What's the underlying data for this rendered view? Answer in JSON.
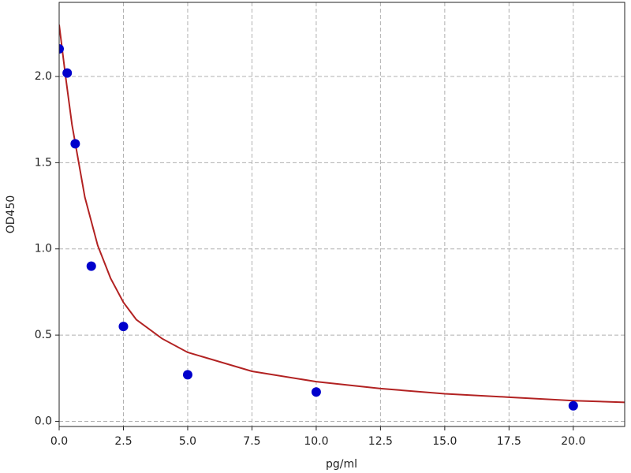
{
  "chart_data": {
    "type": "scatter",
    "x_label": "pg/ml",
    "y_label": "OD450",
    "xlim": [
      0,
      22
    ],
    "ylim": [
      -0.03,
      2.43
    ],
    "xticks": [
      {
        "value": 0,
        "label": "0.0"
      },
      2.5,
      {
        "value": 5,
        "label": "5.0"
      },
      7.5,
      {
        "value": 10,
        "label": "10.0"
      },
      12.5,
      {
        "value": 15,
        "label": "15.0"
      },
      17.5,
      {
        "value": 20,
        "label": "20.0"
      }
    ],
    "yticks": [
      {
        "value": 0,
        "label": "0.0"
      },
      0.5,
      {
        "value": 1,
        "label": "1.0"
      },
      1.5,
      {
        "value": 2,
        "label": "2.0"
      }
    ],
    "grid": true,
    "series": [
      {
        "type": "line",
        "color": "#b22222",
        "x": [
          0,
          0.25,
          0.5,
          1,
          1.5,
          2,
          2.5,
          3,
          4,
          5,
          7.5,
          10,
          12.5,
          15,
          17.5,
          20,
          22
        ],
        "values": [
          2.3,
          2.0,
          1.72,
          1.3,
          1.02,
          0.83,
          0.69,
          0.59,
          0.48,
          0.4,
          0.29,
          0.23,
          0.19,
          0.16,
          0.14,
          0.12,
          0.11
        ]
      },
      {
        "type": "scatter",
        "color": "#0000cc",
        "x": [
          0,
          0.3125,
          0.625,
          1.25,
          2.5,
          5,
          10,
          20
        ],
        "values": [
          2.16,
          2.02,
          1.61,
          0.9,
          0.55,
          0.27,
          0.17,
          0.09
        ]
      }
    ]
  }
}
